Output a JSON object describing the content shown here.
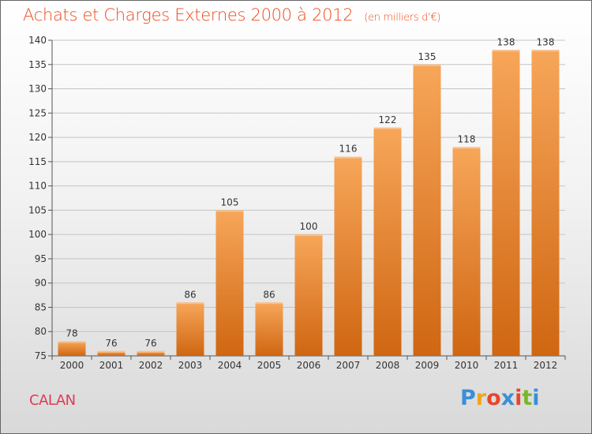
{
  "chart_data": {
    "type": "bar",
    "title": "Achats et Charges Externes 2000 à 2012",
    "unit": "(en milliers d'€)",
    "categories": [
      "2000",
      "2001",
      "2002",
      "2003",
      "2004",
      "2005",
      "2006",
      "2007",
      "2008",
      "2009",
      "2010",
      "2011",
      "2012"
    ],
    "values": [
      78,
      76,
      76,
      86,
      105,
      86,
      100,
      116,
      122,
      135,
      118,
      138,
      138
    ],
    "ylim": [
      75,
      140
    ],
    "yticks": [
      75,
      80,
      85,
      90,
      95,
      100,
      105,
      110,
      115,
      120,
      125,
      130,
      135,
      140
    ],
    "grid": true,
    "bar_color": "#f28a2e"
  },
  "place": "CALAN",
  "logo": {
    "letters": [
      "P",
      "r",
      "o",
      "x",
      "i",
      "t",
      "i"
    ],
    "colors": [
      "#3a8fd6",
      "#f2a516",
      "#e8462c",
      "#3a8fd6",
      "#e8462c",
      "#79b829",
      "#3a8fd6"
    ]
  }
}
